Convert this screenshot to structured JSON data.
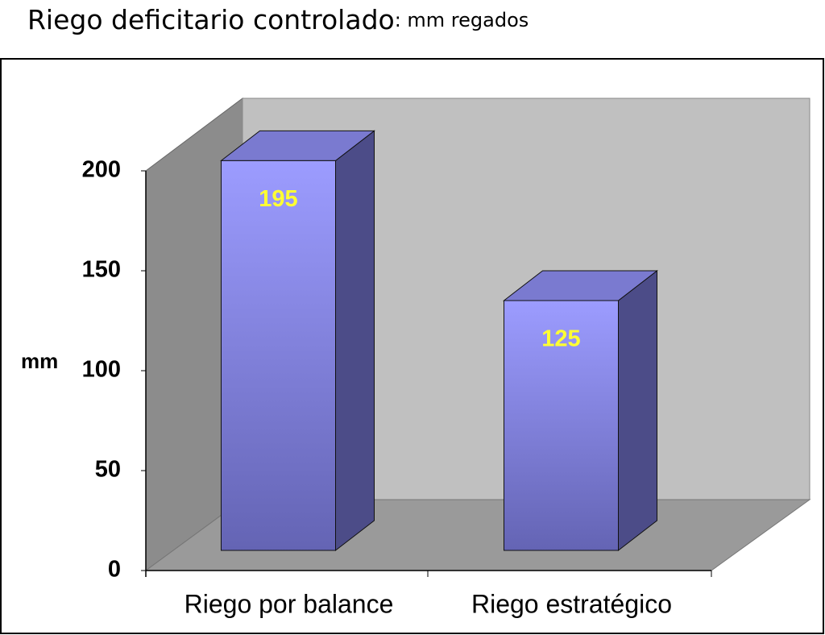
{
  "chart_data": {
    "type": "bar3d",
    "title": "Riego deficitario controlado",
    "subtitle": ": mm regados",
    "y_label": "mm",
    "categories": [
      "Riego por balance",
      "Riego estratégico"
    ],
    "values": [
      195,
      125
    ],
    "color": "#9999ff",
    "ylim": [
      0,
      200
    ],
    "yticks": [
      0,
      50,
      100,
      150,
      200
    ]
  }
}
